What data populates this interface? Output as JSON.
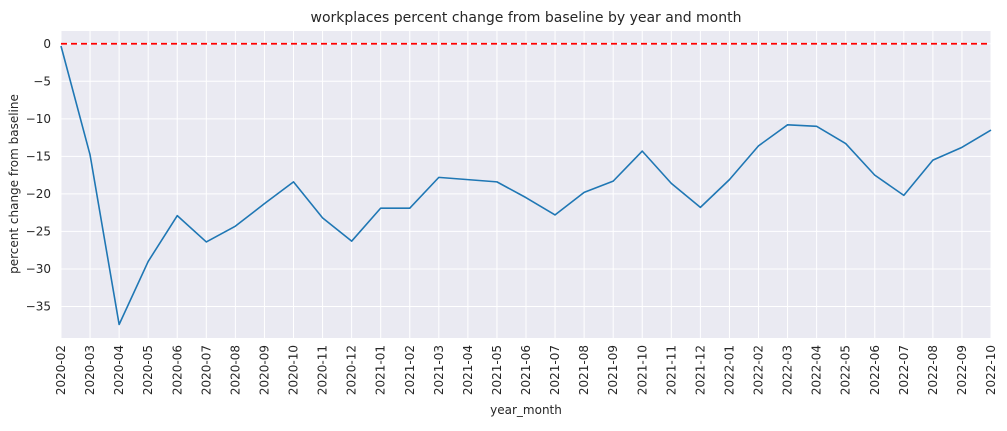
{
  "chart_data": {
    "type": "line",
    "title": "workplaces percent change from baseline by year and month",
    "xlabel": "year_month",
    "ylabel": "percent change from baseline",
    "categories": [
      "2020-02",
      "2020-03",
      "2020-04",
      "2020-05",
      "2020-06",
      "2020-07",
      "2020-08",
      "2020-09",
      "2020-10",
      "2020-11",
      "2020-12",
      "2021-01",
      "2021-02",
      "2021-03",
      "2021-04",
      "2021-05",
      "2021-06",
      "2021-07",
      "2021-08",
      "2021-09",
      "2021-10",
      "2021-11",
      "2021-12",
      "2022-01",
      "2022-02",
      "2022-03",
      "2022-04",
      "2022-05",
      "2022-06",
      "2022-07",
      "2022-08",
      "2022-09",
      "2022-10"
    ],
    "series": [
      {
        "values": [
          -0.3,
          -14.8,
          -37.4,
          -29.0,
          -22.9,
          -26.4,
          -24.3,
          -21.3,
          -18.4,
          -23.2,
          -26.3,
          -21.9,
          -21.9,
          -17.8,
          -18.1,
          -18.4,
          -20.5,
          -22.8,
          -19.8,
          -18.3,
          -14.3,
          -18.6,
          -21.8,
          -18.1,
          -13.6,
          -10.8,
          -11.0,
          -13.3,
          -17.5,
          -20.2,
          -15.5,
          -13.8,
          -11.5
        ],
        "color": "#1f77b4"
      }
    ],
    "yticks": [
      0,
      -5,
      -10,
      -15,
      -20,
      -25,
      -30,
      -35
    ],
    "ylim": [
      -39.2,
      1.7
    ],
    "baseline": {
      "value": 0,
      "color": "#ff0000",
      "style": "dashed"
    },
    "grid": true,
    "background_color": "#eaeaf2",
    "grid_color": "#ffffff"
  }
}
